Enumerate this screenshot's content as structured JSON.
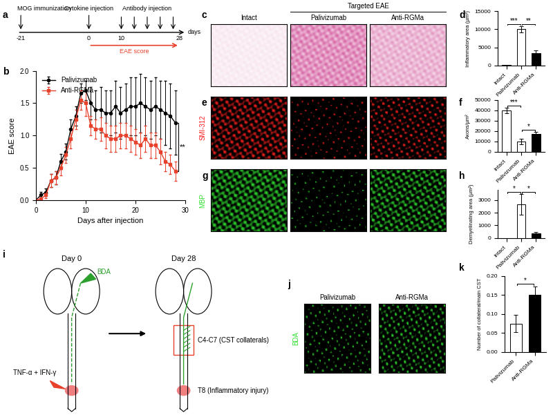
{
  "timeline": {
    "panel": "a",
    "events": [
      {
        "day": -21,
        "label": "MOG immunization"
      },
      {
        "day": 0,
        "label": "Cytokine injection"
      }
    ],
    "antibody_label": "Antibody injection",
    "antibody_days": [
      10,
      14,
      18,
      22,
      26
    ],
    "day_ticks": [
      -21,
      0,
      10,
      28
    ],
    "unit": "days",
    "span": [
      0,
      28
    ],
    "span_label": "EAE score",
    "span_color": "#e8412c"
  },
  "chart_data": [
    {
      "panel": "b",
      "type": "line",
      "x": [
        0,
        1,
        2,
        3,
        4,
        5,
        6,
        7,
        8,
        9,
        10,
        11,
        12,
        13,
        14,
        15,
        16,
        17,
        18,
        19,
        20,
        21,
        22,
        23,
        24,
        25,
        26,
        27,
        28
      ],
      "xlim": [
        0,
        30
      ],
      "xticks": [
        0,
        10,
        20,
        30
      ],
      "ylim": [
        0,
        2.0
      ],
      "yticks": [
        {
          "value": 0,
          "label": "0.0"
        },
        {
          "value": 0.5,
          "label": "0.5"
        },
        {
          "value": 1.0,
          "label": "1.0"
        },
        {
          "value": 1.5,
          "label": "1.5"
        },
        {
          "value": 2.0,
          "label": "2.0"
        }
      ],
      "xlabel": "Days after injection",
      "ylabel": "EAE score",
      "legend": "upper left",
      "series": [
        {
          "name": "Palivizumab",
          "color": "#000000",
          "marker": "o",
          "values": [
            0,
            0.08,
            0.12,
            0.3,
            0.35,
            0.6,
            0.75,
            1.1,
            1.3,
            1.65,
            1.7,
            1.5,
            1.4,
            1.4,
            1.35,
            1.35,
            1.45,
            1.35,
            1.4,
            1.45,
            1.45,
            1.5,
            1.45,
            1.4,
            1.45,
            1.4,
            1.35,
            1.3,
            1.2
          ],
          "errors": [
            0,
            0.05,
            0.06,
            0.1,
            0.1,
            0.12,
            0.12,
            0.15,
            0.15,
            0.15,
            0.15,
            0.25,
            0.3,
            0.35,
            0.35,
            0.35,
            0.4,
            0.4,
            0.4,
            0.45,
            0.45,
            0.45,
            0.45,
            0.45,
            0.45,
            0.45,
            0.5,
            0.5,
            0.5
          ]
        },
        {
          "name": "Anti-RGMa",
          "color": "#e8412c",
          "marker": "s",
          "values": [
            0,
            0.02,
            0.08,
            0.3,
            0.35,
            0.5,
            0.7,
            0.95,
            1.25,
            1.55,
            1.5,
            1.15,
            1.1,
            1.1,
            1.0,
            0.95,
            0.95,
            1.0,
            1.0,
            0.95,
            0.9,
            0.85,
            0.95,
            0.85,
            0.85,
            0.75,
            0.6,
            0.55,
            0.45
          ],
          "errors": [
            0,
            0.02,
            0.05,
            0.1,
            0.1,
            0.12,
            0.12,
            0.15,
            0.15,
            0.15,
            0.2,
            0.15,
            0.15,
            0.18,
            0.2,
            0.2,
            0.2,
            0.2,
            0.2,
            0.2,
            0.2,
            0.2,
            0.2,
            0.2,
            0.2,
            0.2,
            0.15,
            0.15,
            0.15
          ]
        }
      ],
      "significance": [
        {
          "between": [
            "Palivizumab",
            "Anti-RGMa"
          ],
          "label": "**"
        }
      ]
    },
    {
      "panel": "d",
      "type": "bar",
      "categories": [
        "Intact",
        "Palivizumab",
        "Anti-RGMa"
      ],
      "values": [
        100,
        10000,
        3500
      ],
      "errors": [
        30,
        900,
        600
      ],
      "colors": [
        "#ffffff",
        "#ffffff",
        "#000000"
      ],
      "ylabel": "Inflammatory area (µm²)",
      "ylim": [
        0,
        15000
      ],
      "yticks": [
        0,
        5000,
        10000,
        15000
      ],
      "significance": [
        {
          "between": [
            "Intact",
            "Palivizumab"
          ],
          "label": "***"
        },
        {
          "between": [
            "Palivizumab",
            "Anti-RGMa"
          ],
          "label": "**"
        }
      ]
    },
    {
      "panel": "f",
      "type": "bar",
      "categories": [
        "Intact",
        "Palivizumab",
        "Anti-RGMa"
      ],
      "values": [
        40000,
        10000,
        17500
      ],
      "errors": [
        2500,
        2500,
        1500
      ],
      "colors": [
        "#ffffff",
        "#ffffff",
        "#000000"
      ],
      "ylabel": "Axons/µm²",
      "ylim": [
        0,
        50000
      ],
      "yticks": [
        0,
        10000,
        20000,
        30000,
        40000,
        50000
      ],
      "significance": [
        {
          "between": [
            "Intact",
            "Palivizumab"
          ],
          "label": "***"
        },
        {
          "between": [
            "Palivizumab",
            "Anti-RGMa"
          ],
          "label": "*"
        }
      ]
    },
    {
      "panel": "h",
      "type": "bar",
      "categories": [
        "Intact",
        "Palivizumab",
        "Anti-RGMa"
      ],
      "values": [
        0,
        2650,
        350
      ],
      "errors": [
        0,
        800,
        150
      ],
      "colors": [
        "#ffffff",
        "#ffffff",
        "#000000"
      ],
      "ylabel": "Demyelinating area (µm²)",
      "ylim": [
        0,
        3800
      ],
      "yticks": [
        0,
        1000,
        2000,
        3000
      ],
      "significance": [
        {
          "between": [
            "Intact",
            "Palivizumab"
          ],
          "label": "*"
        },
        {
          "between": [
            "Palivizumab",
            "Anti-RGMa"
          ],
          "label": "*"
        }
      ]
    },
    {
      "panel": "k",
      "type": "bar",
      "categories": [
        "Palivizumab",
        "Anti-RGMa"
      ],
      "values": [
        0.075,
        0.15
      ],
      "errors": [
        0.022,
        0.022
      ],
      "colors": [
        "#ffffff",
        "#000000"
      ],
      "ylabel": "Number of collateral/main CST",
      "ylim": [
        0,
        0.2
      ],
      "yticks": [
        {
          "value": 0,
          "label": "0.00"
        },
        {
          "value": 0.05,
          "label": "0.05"
        },
        {
          "value": 0.1,
          "label": "0.10"
        },
        {
          "value": 0.15,
          "label": "0.15"
        },
        {
          "value": 0.2,
          "label": "0.20"
        }
      ],
      "significance": [
        {
          "between": [
            "Palivizumab",
            "Anti-RGMa"
          ],
          "label": "*"
        }
      ]
    }
  ],
  "images": [
    {
      "panel": "c",
      "columns": [
        "Intact",
        "Palivizumab",
        "Anti-RGMa"
      ],
      "group": {
        "label": "Targeted EAE",
        "columns": [
          "Palivizumab",
          "Anti-RGMa"
        ]
      },
      "color": "#d86aa8"
    },
    {
      "panel": "e",
      "label": "SMI-312",
      "color": "#ff2020"
    },
    {
      "panel": "g",
      "label": "MBP",
      "color": "#30e030"
    },
    {
      "panel": "j",
      "label": "BDA",
      "columns": [
        "Palivizumab",
        "Anti-RGMa"
      ],
      "color": "#30e030"
    }
  ],
  "diagram": {
    "panel": "i",
    "days": [
      "Day 0",
      "Day 28"
    ],
    "tracer": "BDA",
    "tracer_color": "#2ca02c",
    "injection": "TNF-α + IFN-γ",
    "injection_color": "#e8412c",
    "collaterals": "C4-C7 (CST collaterals)",
    "lesion": "T8 (Inflammatory injury)",
    "lesion_color": "#f08080"
  }
}
